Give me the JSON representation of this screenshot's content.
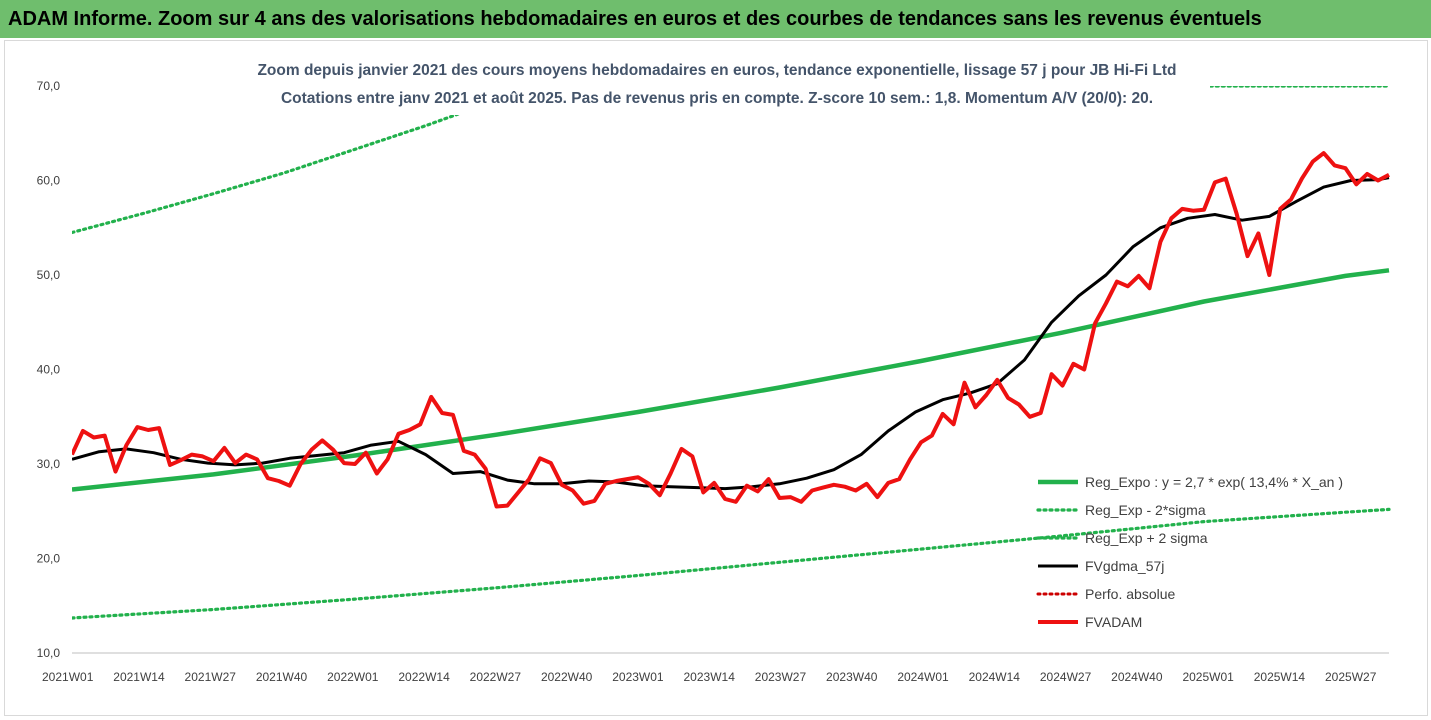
{
  "header": {
    "title": "ADAM Informe. Zoom sur 4 ans des valorisations hebdomadaires en euros et des courbes de tendances sans les revenus éventuels"
  },
  "chart_data": {
    "type": "line",
    "title": [
      "Zoom depuis janvier 2021 des cours moyens hebdomadaires en euros, tendance exponentielle, lissage 57 j pour JB Hi-Fi Ltd",
      "Cotations entre janv 2021 et août 2025.  Pas de revenus pris en compte. Z-score 10 sem.: 1,8. Momentum A/V (20/0): 20."
    ],
    "ylim": [
      10,
      70
    ],
    "yticks": [
      "10,0",
      "20,0",
      "30,0",
      "40,0",
      "50,0",
      "60,0",
      "70,0"
    ],
    "xticks": [
      "2021W01",
      "2021W14",
      "2021W27",
      "2021W40",
      "2022W01",
      "2022W14",
      "2022W27",
      "2022W40",
      "2023W01",
      "2023W14",
      "2023W27",
      "2023W40",
      "2024W01",
      "2024W14",
      "2024W27",
      "2024W40",
      "2025W01",
      "2025W14",
      "2025W27"
    ],
    "x_range_weeks": [
      0,
      242
    ],
    "grid": false,
    "legend_position": "bottom-right",
    "colors": {
      "green": "#22b14c",
      "black": "#000000",
      "red": "#ee1111",
      "dotted_red": "#cc0000"
    },
    "series": [
      {
        "name": "Reg_Expo : y = 2,7 * exp( 13,4% *  X_an )",
        "style": "solid-green",
        "x": [
          0,
          26,
          52,
          78,
          104,
          130,
          156,
          182,
          208,
          234,
          242
        ],
        "y": [
          27.3,
          28.9,
          30.9,
          33.1,
          35.5,
          38.1,
          40.9,
          43.9,
          47.2,
          49.9,
          50.5
        ]
      },
      {
        "name": "Reg_Exp - 2*sigma",
        "style": "dotted-green",
        "x": [
          0,
          26,
          52,
          78,
          104,
          130,
          156,
          182,
          208,
          234,
          242
        ],
        "y": [
          13.7,
          14.6,
          15.7,
          16.9,
          18.2,
          19.6,
          21.0,
          22.4,
          23.9,
          24.9,
          25.2
        ]
      },
      {
        "name": "Reg_Exp + 2 sigma",
        "style": "dotted-green",
        "x": [
          0,
          13,
          26,
          39,
          52,
          65,
          78,
          85,
          90
        ],
        "y": [
          54.5,
          56.5,
          58.6,
          60.8,
          63.3,
          65.8,
          68.5,
          70.3,
          72.0
        ]
      },
      {
        "name": "FVgdma_57j",
        "style": "solid-black",
        "x": [
          0,
          5,
          10,
          15,
          20,
          25,
          30,
          35,
          40,
          45,
          50,
          55,
          60,
          65,
          70,
          75,
          80,
          85,
          90,
          95,
          100,
          105,
          110,
          115,
          120,
          125,
          130,
          135,
          140,
          145,
          150,
          155,
          160,
          165,
          170,
          175,
          180,
          185,
          190,
          195,
          200,
          205,
          210,
          215,
          220,
          225,
          230,
          235,
          240,
          242
        ],
        "y": [
          30.5,
          31.3,
          31.6,
          31.2,
          30.5,
          30.1,
          29.9,
          30.1,
          30.6,
          30.9,
          31.2,
          32.0,
          32.4,
          31.0,
          29.0,
          29.2,
          28.3,
          27.9,
          27.9,
          28.2,
          28.1,
          27.7,
          27.6,
          27.5,
          27.4,
          27.6,
          27.9,
          28.5,
          29.4,
          31.0,
          33.5,
          35.5,
          36.8,
          37.5,
          38.5,
          41.0,
          45.0,
          47.8,
          50.0,
          53.0,
          55.0,
          56.0,
          56.4,
          55.8,
          56.2,
          57.8,
          59.3,
          60.0,
          60.1,
          60.3
        ]
      },
      {
        "name": "Perfo. absolue",
        "style": "dotted-red",
        "x": [],
        "y": []
      },
      {
        "name": "FVADAM",
        "style": "solid-red",
        "x": [
          0,
          2,
          4,
          6,
          8,
          10,
          12,
          14,
          16,
          18,
          20,
          22,
          24,
          26,
          28,
          30,
          32,
          34,
          36,
          38,
          40,
          42,
          44,
          46,
          48,
          50,
          52,
          54,
          56,
          58,
          60,
          62,
          64,
          66,
          68,
          70,
          72,
          74,
          76,
          78,
          80,
          82,
          84,
          86,
          88,
          90,
          92,
          94,
          96,
          98,
          100,
          102,
          104,
          106,
          108,
          110,
          112,
          114,
          116,
          118,
          120,
          122,
          124,
          126,
          128,
          130,
          132,
          134,
          136,
          138,
          140,
          142,
          144,
          146,
          148,
          150,
          152,
          154,
          156,
          158,
          160,
          162,
          164,
          166,
          168,
          170,
          172,
          174,
          176,
          178,
          180,
          182,
          184,
          186,
          188,
          190,
          192,
          194,
          196,
          198,
          200,
          202,
          204,
          206,
          208,
          210,
          212,
          214,
          216,
          218,
          220,
          222,
          224,
          226,
          228,
          230,
          232,
          234,
          236,
          238,
          240,
          242
        ],
        "y": [
          31.0,
          33.5,
          32.8,
          33.0,
          29.2,
          32.0,
          33.9,
          33.6,
          33.8,
          29.9,
          30.4,
          31.0,
          30.8,
          30.3,
          31.7,
          30.1,
          31.0,
          30.5,
          28.5,
          28.2,
          27.7,
          30.0,
          31.5,
          32.5,
          31.5,
          30.1,
          30.0,
          31.2,
          29.0,
          30.5,
          33.2,
          33.6,
          34.2,
          37.1,
          35.4,
          35.2,
          31.4,
          31.0,
          29.5,
          25.5,
          25.6,
          27.0,
          28.4,
          30.6,
          30.1,
          27.8,
          27.2,
          25.8,
          26.1,
          27.9,
          28.2,
          28.4,
          28.6,
          27.9,
          26.7,
          29.0,
          31.6,
          30.8,
          27.0,
          28.0,
          26.3,
          26.0,
          27.7,
          27.1,
          28.4,
          26.4,
          26.5,
          26.0,
          27.2,
          27.5,
          27.8,
          27.6,
          27.2,
          27.9,
          26.5,
          28.0,
          28.4,
          30.5,
          32.3,
          33.0,
          35.3,
          34.2,
          38.6,
          36.0,
          37.3,
          38.9,
          37.0,
          36.3,
          35.0,
          35.4,
          39.5,
          38.3,
          40.6,
          40.0,
          44.9,
          47.0,
          49.3,
          48.8,
          49.9,
          48.6,
          53.5,
          56.0,
          57.0,
          56.8,
          56.9,
          59.8,
          60.2,
          56.5,
          52.0,
          54.4,
          50.0,
          57.0,
          58.0,
          60.2,
          62.0,
          62.9,
          61.6,
          61.3,
          59.6,
          60.7,
          60.0,
          60.6
        ]
      }
    ]
  }
}
